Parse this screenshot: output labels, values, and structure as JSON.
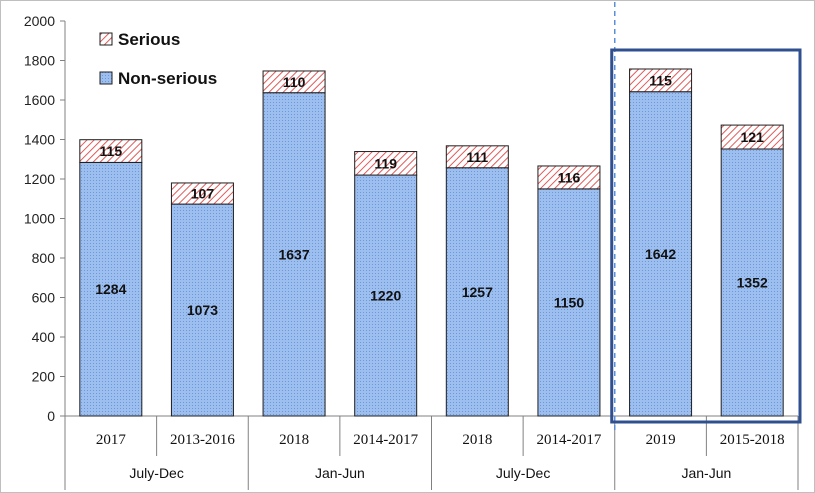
{
  "chart_data": {
    "type": "bar",
    "stacked": true,
    "ylim": [
      0,
      2000
    ],
    "yticks": [
      0,
      200,
      400,
      600,
      800,
      1000,
      1200,
      1400,
      1600,
      1800,
      2000
    ],
    "grid": false,
    "legend_position": "top-left",
    "categories": [
      "2017",
      "2013-2016",
      "2018",
      "2014-2017",
      "2018",
      "2014-2017",
      "2019",
      "2015-2018"
    ],
    "groups": [
      {
        "label": "July-Dec",
        "span": [
          0,
          1
        ]
      },
      {
        "label": "Jan-Jun",
        "span": [
          2,
          3
        ]
      },
      {
        "label": "July-Dec",
        "span": [
          4,
          5
        ]
      },
      {
        "label": "Jan-Jun",
        "span": [
          6,
          7
        ]
      }
    ],
    "series": [
      {
        "name": "Non-serious",
        "values": [
          1284,
          1073,
          1637,
          1220,
          1257,
          1150,
          1642,
          1352
        ]
      },
      {
        "name": "Serious",
        "values": [
          115,
          107,
          110,
          119,
          111,
          116,
          115,
          121
        ]
      }
    ],
    "highlighted_categories": [
      6,
      7
    ],
    "divider_after_category": 5
  },
  "colors": {
    "non_serious_fill": "#9dbff0",
    "non_serious_stroke": "#1f1f1f",
    "serious_hatch": "#e05a5a",
    "highlight_box": "#2f4f8f",
    "divider": "#5b8fd6"
  }
}
